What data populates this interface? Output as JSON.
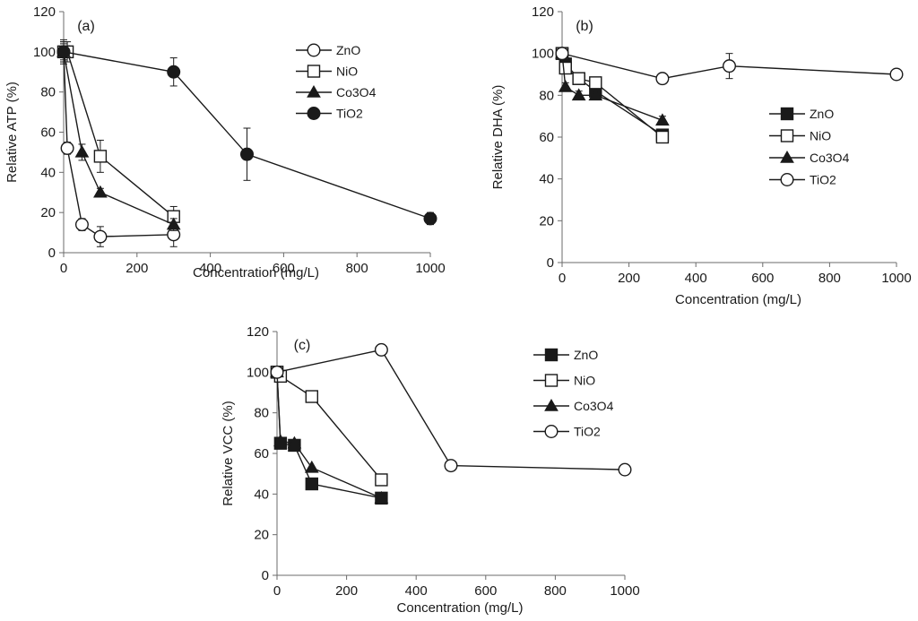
{
  "chart_data": [
    {
      "type": "line",
      "panel_label": "(a)",
      "xlabel": "Concentration (mg/L)",
      "ylabel": "Relative ATP (%)",
      "xlim": [
        0,
        1000
      ],
      "ylim": [
        0,
        120
      ],
      "xticks": [
        "0",
        "200",
        "400",
        "600",
        "800",
        "1000"
      ],
      "yticks": [
        "0",
        "20",
        "40",
        "60",
        "80",
        "100",
        "120"
      ],
      "legend_position": "top-right",
      "series": [
        {
          "name": "ZnO",
          "marker": "open-circle",
          "x": [
            0,
            10,
            50,
            100,
            300
          ],
          "y": [
            100,
            52,
            14,
            8,
            9
          ],
          "err": [
            5,
            3,
            3,
            5,
            6
          ]
        },
        {
          "name": "NiO",
          "marker": "open-square",
          "x": [
            0,
            10,
            100,
            300
          ],
          "y": [
            100,
            100,
            48,
            18
          ],
          "err": [
            6,
            5,
            8,
            5
          ]
        },
        {
          "name": "Co3O4",
          "marker": "filled-triangle",
          "x": [
            0,
            50,
            100,
            300
          ],
          "y": [
            100,
            50,
            30,
            14
          ],
          "err": [
            5,
            4,
            2,
            3
          ]
        },
        {
          "name": "TiO2",
          "marker": "filled-circle",
          "x": [
            0,
            300,
            500,
            1000
          ],
          "y": [
            100,
            90,
            49,
            17
          ],
          "err": [
            4,
            7,
            13,
            3
          ]
        }
      ]
    },
    {
      "type": "line",
      "panel_label": "(b)",
      "xlabel": "Concentration (mg/L)",
      "ylabel": "Relative DHA (%)",
      "xlim": [
        0,
        1000
      ],
      "ylim": [
        0,
        120
      ],
      "xticks": [
        "0",
        "200",
        "400",
        "600",
        "800",
        "1000"
      ],
      "yticks": [
        "0",
        "20",
        "40",
        "60",
        "80",
        "100",
        "120"
      ],
      "legend_position": "center-right",
      "series": [
        {
          "name": "ZnO",
          "marker": "filled-square",
          "x": [
            0,
            10,
            50,
            100,
            300
          ],
          "y": [
            100,
            95,
            88,
            82,
            61
          ],
          "err": [
            2,
            2,
            2,
            2,
            2
          ]
        },
        {
          "name": "NiO",
          "marker": "open-square",
          "x": [
            0,
            10,
            50,
            100,
            300
          ],
          "y": [
            100,
            93,
            88,
            86,
            60
          ],
          "err": [
            2,
            2,
            2,
            2,
            2
          ]
        },
        {
          "name": "Co3O4",
          "marker": "filled-triangle",
          "x": [
            0,
            10,
            50,
            100,
            300
          ],
          "y": [
            100,
            84,
            80,
            80,
            68
          ],
          "err": [
            2,
            2,
            2,
            2,
            2
          ]
        },
        {
          "name": "TiO2",
          "marker": "open-circle",
          "x": [
            0,
            300,
            500,
            1000
          ],
          "y": [
            100,
            88,
            94,
            90
          ],
          "err": [
            2,
            2,
            6,
            2
          ]
        }
      ]
    },
    {
      "type": "line",
      "panel_label": "(c)",
      "xlabel": "Concentration (mg/L)",
      "ylabel": "Relative VCC (%)",
      "xlim": [
        0,
        1000
      ],
      "ylim": [
        0,
        120
      ],
      "xticks": [
        "0",
        "200",
        "400",
        "600",
        "800",
        "1000"
      ],
      "yticks": [
        "0",
        "20",
        "40",
        "60",
        "80",
        "100",
        "120"
      ],
      "legend_position": "top-right",
      "series": [
        {
          "name": "ZnO",
          "marker": "filled-square",
          "x": [
            0,
            10,
            50,
            100,
            300
          ],
          "y": [
            100,
            65,
            64,
            45,
            38
          ],
          "err": [
            0,
            0,
            0,
            0,
            0
          ]
        },
        {
          "name": "NiO",
          "marker": "open-square",
          "x": [
            0,
            10,
            100,
            300
          ],
          "y": [
            100,
            98,
            88,
            47
          ],
          "err": [
            0,
            0,
            0,
            0
          ]
        },
        {
          "name": "Co3O4",
          "marker": "filled-triangle",
          "x": [
            0,
            10,
            50,
            100,
            300
          ],
          "y": [
            100,
            66,
            65,
            53,
            38
          ],
          "err": [
            0,
            0,
            0,
            0,
            0
          ]
        },
        {
          "name": "TiO2",
          "marker": "open-circle",
          "x": [
            0,
            300,
            500,
            1000
          ],
          "y": [
            100,
            111,
            54,
            52
          ],
          "err": [
            0,
            0,
            0,
            0
          ]
        }
      ]
    }
  ]
}
